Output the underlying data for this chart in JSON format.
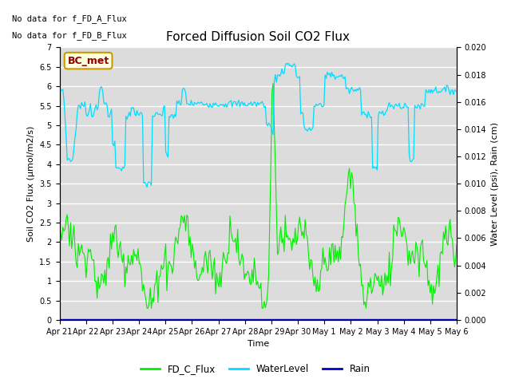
{
  "title": "Forced Diffusion Soil CO2 Flux",
  "xlabel": "Time",
  "ylabel_left": "Soil CO2 Flux (μmol/m2/s)",
  "ylabel_right": "Water Level (psi), Rain (cm)",
  "no_data_text_1": "No data for f_FD_A_Flux",
  "no_data_text_2": "No data for f_FD_B_Flux",
  "annotation_box": "BC_met",
  "ylim_left": [
    0.0,
    7.0
  ],
  "ylim_right": [
    0.0,
    0.02
  ],
  "bg_color": "#dcdcdc",
  "line_green": "#00ee00",
  "line_cyan": "#00ddff",
  "line_blue": "#0000cc",
  "legend_labels": [
    "FD_C_Flux",
    "WaterLevel",
    "Rain"
  ],
  "xtick_labels": [
    "Apr 21",
    "Apr 22",
    "Apr 23",
    "Apr 24",
    "Apr 25",
    "Apr 26",
    "Apr 27",
    "Apr 28",
    "Apr 29",
    "Apr 30",
    "May 1",
    "May 2",
    "May 3",
    "May 4",
    "May 5",
    "May 6"
  ]
}
